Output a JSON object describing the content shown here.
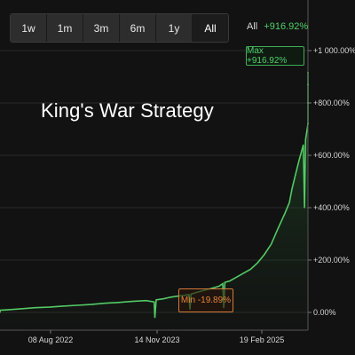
{
  "toolbar": {
    "ranges": [
      "1w",
      "1m",
      "3m",
      "6m",
      "1y",
      "All"
    ],
    "active": "All"
  },
  "summary": {
    "label": "All",
    "value": "+916.92%"
  },
  "badges": {
    "max": "Max +916.92%",
    "min": "Min -19.89%"
  },
  "colors": {
    "line": "#54c964",
    "max": "#4fd16a",
    "min": "#e8843c",
    "background": "#121212"
  },
  "chart_data": {
    "type": "area",
    "title": "King's War Strategy",
    "y_ticks": [
      "+1 000.00%",
      "+800.00%",
      "+600.00%",
      "+400.00%",
      "+200.00%",
      "0.00%"
    ],
    "y_tick_values": [
      1000,
      800,
      600,
      400,
      200,
      0
    ],
    "x_ticks": [
      "08 Aug 2022",
      "14 Nov 2023",
      "19 Feb 2025"
    ],
    "ylim": [
      -45,
      1060
    ],
    "x": [
      "2021-06-01",
      "2021-08-01",
      "2021-10-01",
      "2021-12-01",
      "2022-02-01",
      "2022-04-01",
      "2022-06-01",
      "2022-08-01",
      "2022-10-01",
      "2022-12-01",
      "2023-02-01",
      "2023-04-01",
      "2023-06-01",
      "2023-08-01",
      "2023-10-01",
      "2023-11-05",
      "2023-11-08",
      "2023-11-14",
      "2023-12-15",
      "2024-01-15",
      "2024-02-15",
      "2024-03-15",
      "2024-04-05",
      "2024-04-10",
      "2024-04-15",
      "2024-05-15",
      "2024-06-15",
      "2024-07-15",
      "2024-08-15",
      "2024-09-01",
      "2024-09-05",
      "2024-09-10",
      "2024-10-01",
      "2024-11-01",
      "2024-12-01",
      "2025-01-01",
      "2025-02-01",
      "2025-03-01",
      "2025-04-01",
      "2025-05-01",
      "2025-06-01",
      "2025-06-20",
      "2025-07-01",
      "2025-07-15",
      "2025-08-01",
      "2025-08-20",
      "2025-08-25",
      "2025-08-30",
      "2025-09-15",
      "2025-10-01",
      "2025-10-15",
      "2025-11-01"
    ],
    "y": [
      0,
      3,
      6,
      8,
      10,
      14,
      18,
      20,
      24,
      27,
      30,
      35,
      38,
      42,
      45,
      40,
      -19.89,
      48,
      52,
      58,
      62,
      65,
      68,
      12,
      70,
      78,
      85,
      92,
      100,
      110,
      18,
      115,
      120,
      135,
      150,
      165,
      190,
      220,
      260,
      320,
      380,
      420,
      470,
      520,
      580,
      640,
      400,
      660,
      720,
      800,
      870,
      916.92
    ],
    "annotations": [
      "Max +916.92%",
      "Min -19.89%"
    ]
  }
}
